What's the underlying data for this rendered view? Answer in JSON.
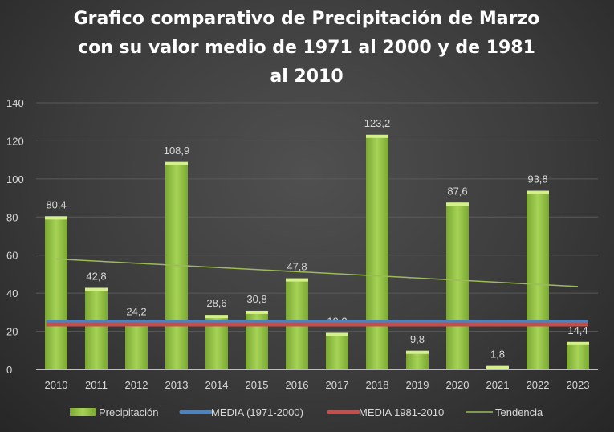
{
  "chart_data": {
    "type": "bar",
    "title_lines": [
      "Grafico comparativo de Precipitación de Marzo",
      "con su valor medio de 1971 al 2000 y de 1981",
      "al 2010"
    ],
    "categories": [
      "2010",
      "2011",
      "2012",
      "2013",
      "2014",
      "2015",
      "2016",
      "2017",
      "2018",
      "2019",
      "2020",
      "2021",
      "2022",
      "2023"
    ],
    "series": [
      {
        "name": "Precipitación",
        "type": "bar",
        "color": "#92c83e",
        "values": [
          80.4,
          42.8,
          24.2,
          108.9,
          28.6,
          30.8,
          47.8,
          19.2,
          123.2,
          9.8,
          87.6,
          1.8,
          93.8,
          14.4
        ],
        "labels": [
          "80,4",
          "42,8",
          "24,2",
          "108,9",
          "28,6",
          "30,8",
          "47,8",
          "19,2",
          "123,2",
          "9,8",
          "87,6",
          "1,8",
          "93,8",
          "14,4"
        ]
      },
      {
        "name": "MEDIA (1971-2000)",
        "type": "line",
        "color": "#4f81bd",
        "value": 25.0
      },
      {
        "name": "MEDIA 1981-2010",
        "type": "line",
        "color": "#c0504d",
        "value": 23.6
      },
      {
        "name": "Tendencia",
        "type": "trendline",
        "color": "#9bbb59",
        "start": 58.0,
        "end": 43.5
      }
    ],
    "ylim": [
      0,
      140
    ],
    "yticks": [
      "0",
      "20",
      "40",
      "60",
      "80",
      "100",
      "120",
      "140"
    ],
    "grid": true,
    "legend_position": "bottom"
  }
}
